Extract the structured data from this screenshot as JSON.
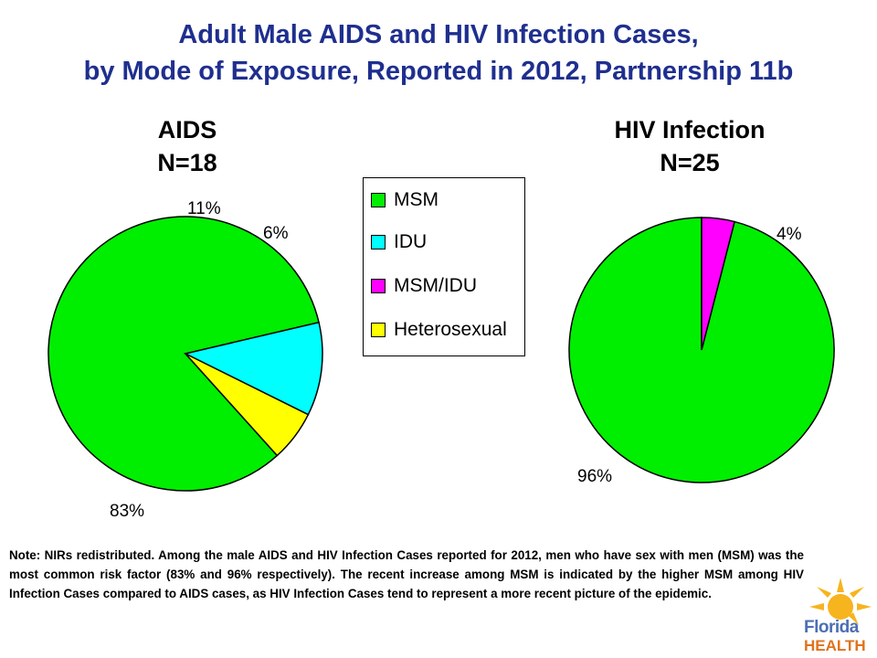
{
  "title": {
    "line1": "Adult Male AIDS and HIV Infection Cases,",
    "line2": "by Mode of Exposure, Reported in 2012, Partnership 11b"
  },
  "legend": {
    "items": [
      {
        "label": "MSM",
        "color": "#00ee00"
      },
      {
        "label": "IDU",
        "color": "#00ffff"
      },
      {
        "label": "MSM/IDU",
        "color": "#ff00ff"
      },
      {
        "label": "Heterosexual",
        "color": "#ffff00"
      }
    ]
  },
  "chart_data": [
    {
      "type": "pie",
      "title": "AIDS",
      "subtitle": "N=18",
      "slices": [
        {
          "category": "MSM",
          "value": 83,
          "label": "83%",
          "color": "#00ee00"
        },
        {
          "category": "IDU",
          "value": 11,
          "label": "11%",
          "color": "#00ffff"
        },
        {
          "category": "Heterosexual",
          "value": 6,
          "label": "6%",
          "color": "#ffff00"
        }
      ]
    },
    {
      "type": "pie",
      "title": "HIV Infection",
      "subtitle": "N=25",
      "slices": [
        {
          "category": "MSM",
          "value": 96,
          "label": "96%",
          "color": "#00ee00"
        },
        {
          "category": "MSM/IDU",
          "value": 4,
          "label": "4%",
          "color": "#ff00ff"
        }
      ]
    }
  ],
  "note": "Note:   NIRs redistributed.  Among the male AIDS and HIV Infection Cases reported for 2012, men who have sex with men (MSM) was the most common risk factor (83% and 96% respectively).  The recent increase among MSM is indicated by the higher  MSM among HIV Infection Cases compared to AIDS cases, as HIV Infection Cases tend to represent a more recent picture of the epidemic.",
  "logo": {
    "line1": "Florida",
    "line2": "HEALTH"
  }
}
